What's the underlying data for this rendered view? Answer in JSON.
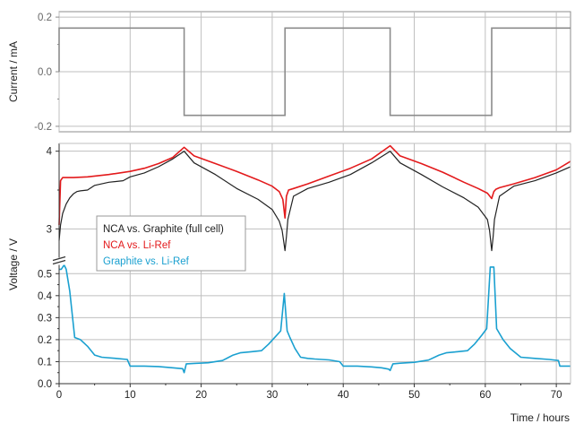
{
  "colors": {
    "current": "#8c8c8c",
    "full_cell": "#222222",
    "cathode": "#e31a1c",
    "anode": "#1aa0d0",
    "grid": "#bfbfbf",
    "frame": "#8c8c8c"
  },
  "chart_data": [
    {
      "type": "line",
      "panel": "current",
      "xlabel": "",
      "ylabel": "Current / mA",
      "xlim": [
        0,
        72
      ],
      "ylim": [
        -0.22,
        0.22
      ],
      "yticks": [
        -0.2,
        0.0,
        0.2
      ],
      "ytick_labels": [
        "-0.2",
        "0.0",
        "0.2"
      ],
      "grid": true,
      "series": [
        {
          "color": "#8c8c8c",
          "x": [
            0,
            0,
            17.6,
            17.6,
            31.8,
            31.8,
            46.6,
            46.6,
            60.9,
            60.9,
            72
          ],
          "y": [
            0,
            0.16,
            0.16,
            -0.16,
            -0.16,
            0.16,
            0.16,
            -0.16,
            -0.16,
            0.16,
            0.16
          ]
        }
      ]
    },
    {
      "type": "line",
      "panel": "voltage",
      "xlabel": "Time / hours",
      "ylabel": "Voltage / V",
      "xlim": [
        0,
        72
      ],
      "xticks": [
        0,
        10,
        20,
        30,
        40,
        50,
        60,
        70
      ],
      "xtick_labels": [
        "0",
        "10",
        "20",
        "30",
        "40",
        "50",
        "60",
        "70"
      ],
      "y_axis_break": true,
      "upper_ylim": [
        2.6,
        4.1
      ],
      "upper_yticks": [
        3,
        4
      ],
      "upper_ytick_labels": [
        "3",
        "4"
      ],
      "lower_ylim": [
        0,
        0.55
      ],
      "lower_yticks": [
        0,
        0.1,
        0.2,
        0.3,
        0.4,
        0.5
      ],
      "lower_ytick_labels": [
        "0.0",
        "0.1",
        "0.2",
        "0.3",
        "0.4",
        "0.5"
      ],
      "grid": true,
      "legend": {
        "placement": "upper-left",
        "entries": [
          {
            "label": "NCA vs. Graphite (full cell)",
            "color": "#222222"
          },
          {
            "label": "NCA vs. Li-Ref",
            "color": "#e31a1c"
          },
          {
            "label": "Graphite vs. Li-Ref",
            "color": "#1aa0d0"
          }
        ]
      },
      "series": [
        {
          "name": "NCA vs. Graphite (full cell)",
          "color": "#222222",
          "axis": "upper",
          "x": [
            0,
            0.2,
            0.5,
            1,
            1.5,
            2,
            2.5,
            3,
            4,
            5,
            7,
            9,
            10,
            12,
            14,
            16,
            17.6,
            19,
            22,
            25,
            28,
            30,
            31,
            31.4,
            31.6,
            31.8,
            32.0,
            32.2,
            33,
            35,
            38,
            41,
            44,
            46.6,
            48,
            51,
            54,
            57,
            59,
            60.3,
            60.6,
            60.9,
            61.1,
            61.3,
            62,
            64,
            67,
            70,
            72
          ],
          "y": [
            2.85,
            3.05,
            3.2,
            3.32,
            3.4,
            3.45,
            3.48,
            3.49,
            3.5,
            3.56,
            3.6,
            3.62,
            3.67,
            3.72,
            3.8,
            3.9,
            4.0,
            3.85,
            3.7,
            3.52,
            3.38,
            3.25,
            3.1,
            2.98,
            2.85,
            2.72,
            2.9,
            3.12,
            3.42,
            3.52,
            3.6,
            3.7,
            3.85,
            4.0,
            3.85,
            3.7,
            3.54,
            3.4,
            3.28,
            3.12,
            2.98,
            2.72,
            2.9,
            3.12,
            3.42,
            3.55,
            3.62,
            3.72,
            3.8
          ]
        },
        {
          "name": "NCA vs. Li-Ref",
          "color": "#e31a1c",
          "axis": "upper",
          "x": [
            0,
            0.2,
            0.5,
            1,
            2,
            4,
            7,
            10,
            12,
            14,
            16,
            17.6,
            19,
            22,
            25,
            28,
            30,
            31,
            31.5,
            31.8,
            32.0,
            32.3,
            33,
            35,
            38,
            41,
            44,
            46.6,
            48,
            51,
            54,
            57,
            59,
            60.3,
            60.9,
            61.2,
            61.5,
            62,
            64,
            67,
            70,
            72
          ],
          "y": [
            3.05,
            3.62,
            3.66,
            3.66,
            3.66,
            3.67,
            3.7,
            3.74,
            3.78,
            3.84,
            3.92,
            4.05,
            3.94,
            3.84,
            3.74,
            3.63,
            3.55,
            3.48,
            3.38,
            3.14,
            3.42,
            3.5,
            3.52,
            3.58,
            3.68,
            3.78,
            3.9,
            4.07,
            3.94,
            3.84,
            3.73,
            3.6,
            3.52,
            3.46,
            3.39,
            3.48,
            3.51,
            3.53,
            3.58,
            3.66,
            3.76,
            3.87
          ]
        },
        {
          "name": "Graphite vs. Li-Ref",
          "color": "#1aa0d0",
          "axis": "lower",
          "x": [
            0,
            0.3,
            0.7,
            1,
            1.5,
            2.2,
            3,
            4,
            5,
            6,
            8,
            9.6,
            10,
            12,
            14,
            16,
            17.4,
            17.6,
            17.9,
            19,
            21,
            23,
            24.5,
            25.5,
            27,
            28.5,
            29.5,
            30.5,
            31.2,
            31.7,
            32.1,
            32.5,
            33.2,
            34,
            35,
            36,
            38,
            39.5,
            40,
            42,
            44,
            45.4,
            46.4,
            46.6,
            47,
            48,
            50,
            52,
            53.5,
            54.5,
            56,
            57.5,
            58.5,
            59.5,
            60.2,
            60.7,
            61.2,
            61.6,
            62.5,
            63.5,
            65,
            67,
            69,
            70.3,
            70.5,
            72
          ],
          "y": [
            0.52,
            0.52,
            0.54,
            0.52,
            0.42,
            0.21,
            0.2,
            0.17,
            0.13,
            0.12,
            0.115,
            0.11,
            0.08,
            0.08,
            0.078,
            0.072,
            0.068,
            0.05,
            0.09,
            0.092,
            0.095,
            0.105,
            0.13,
            0.14,
            0.145,
            0.15,
            0.18,
            0.215,
            0.24,
            0.41,
            0.24,
            0.21,
            0.16,
            0.12,
            0.115,
            0.112,
            0.108,
            0.1,
            0.08,
            0.08,
            0.076,
            0.072,
            0.066,
            0.06,
            0.09,
            0.093,
            0.097,
            0.107,
            0.13,
            0.14,
            0.145,
            0.15,
            0.18,
            0.22,
            0.25,
            0.53,
            0.53,
            0.25,
            0.2,
            0.16,
            0.12,
            0.115,
            0.11,
            0.105,
            0.08,
            0.08
          ]
        }
      ]
    }
  ]
}
